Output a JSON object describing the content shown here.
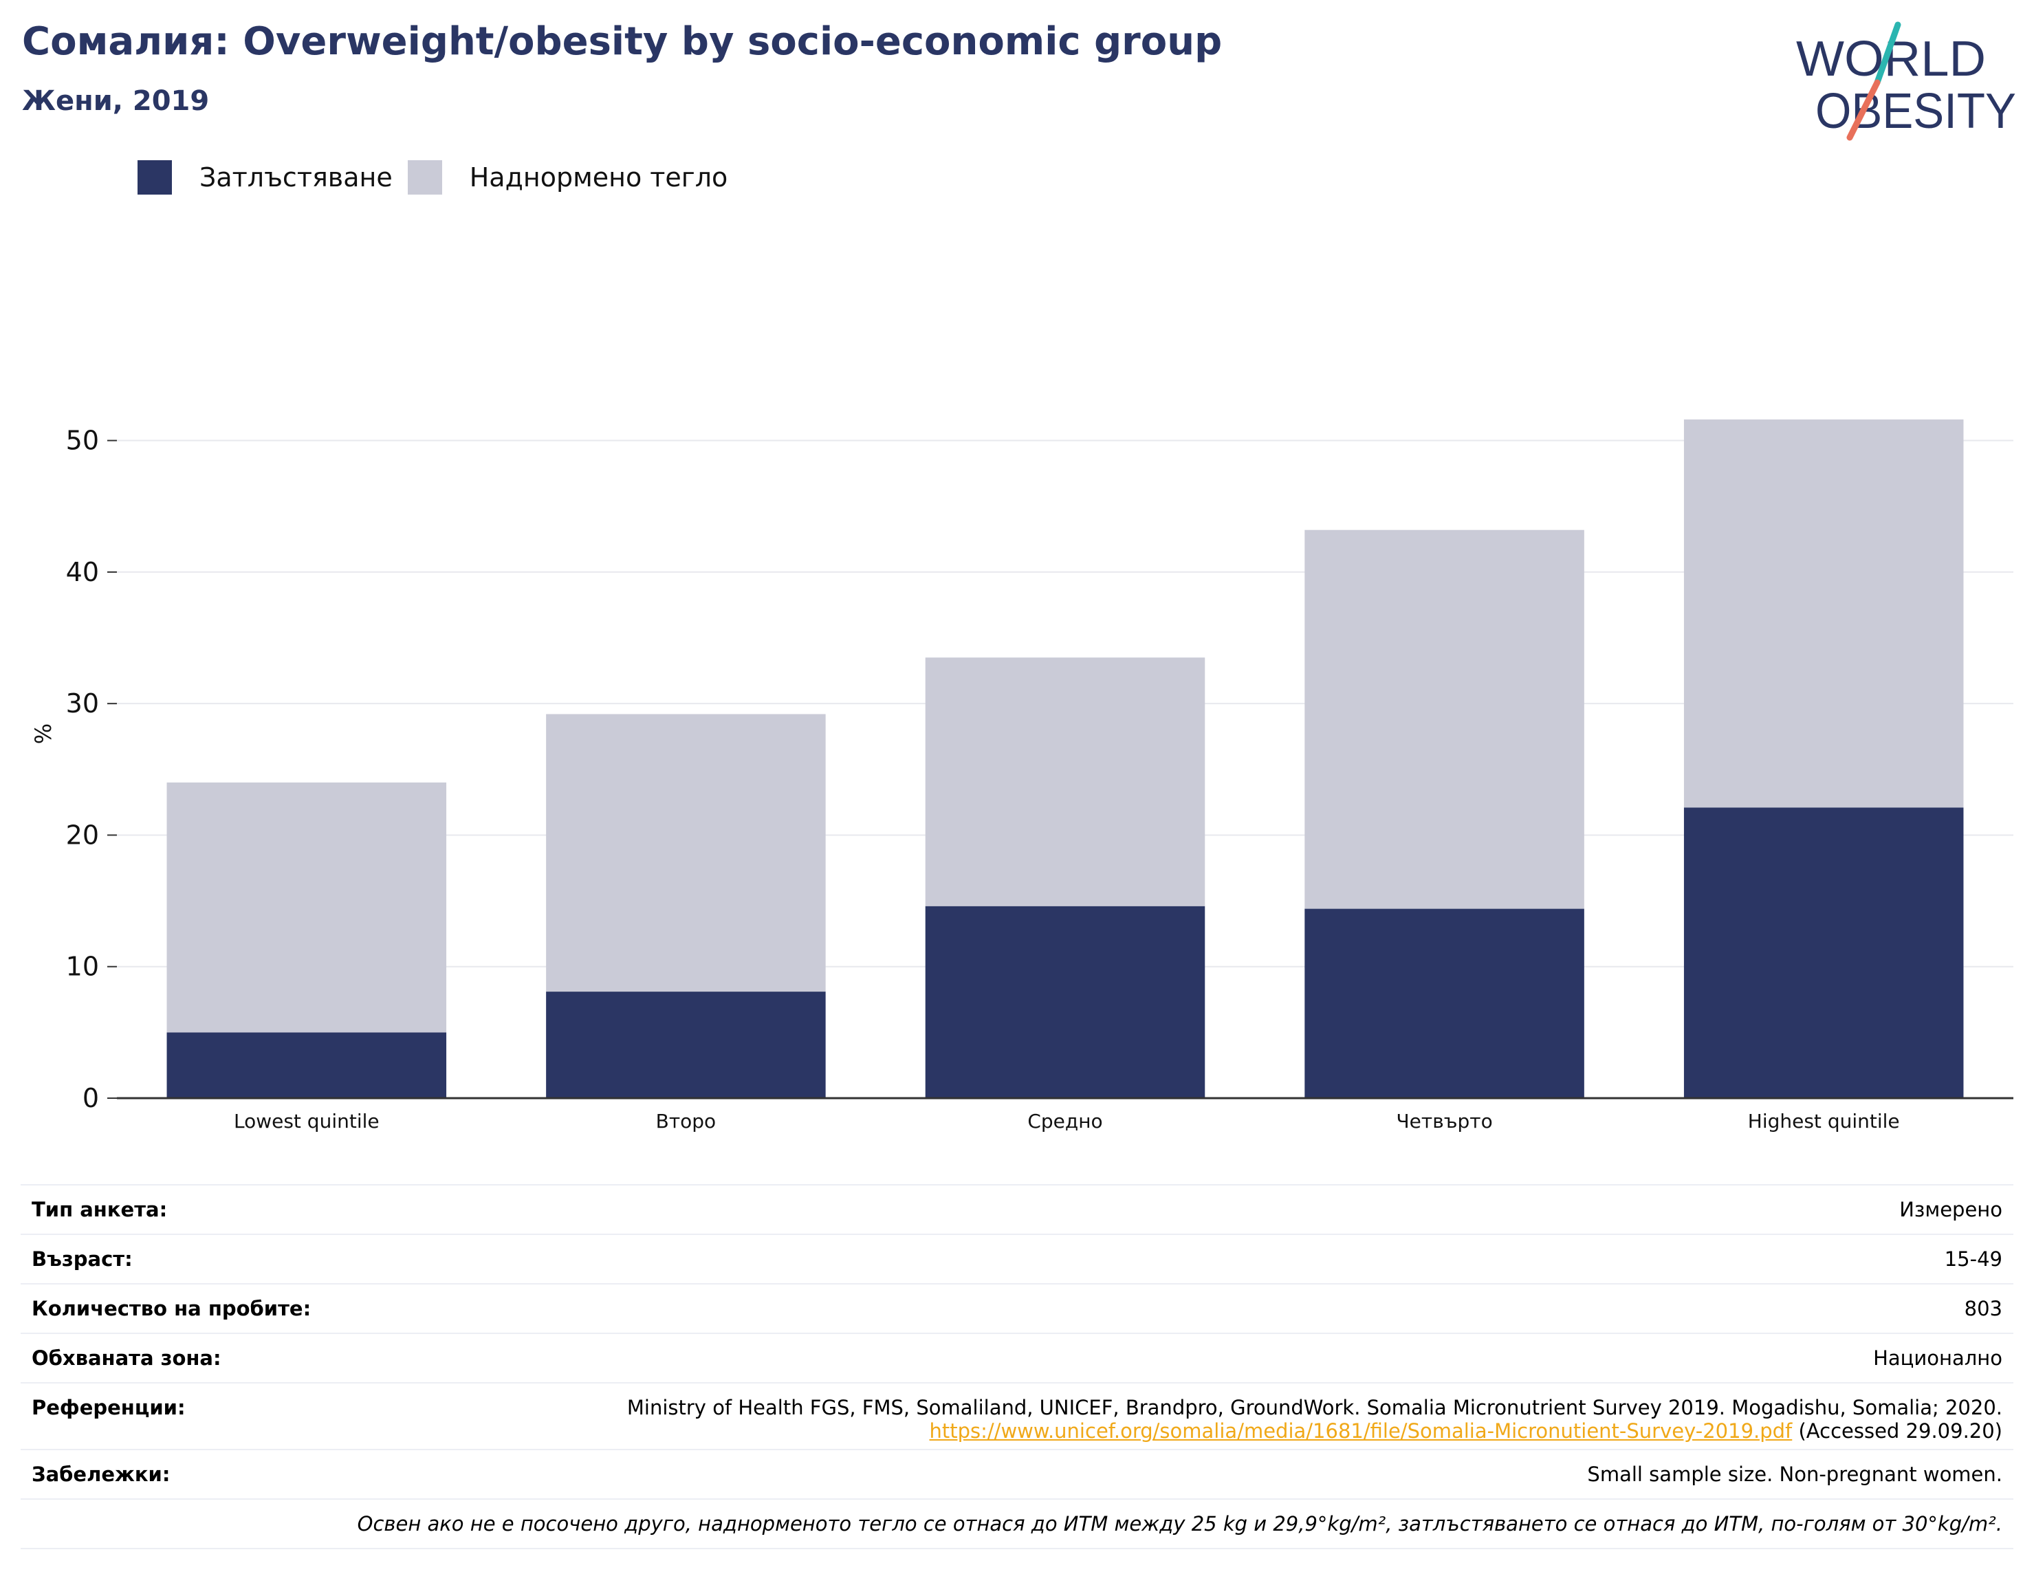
{
  "header": {
    "title": "Сомалия: Overweight/obesity by socio-economic group",
    "subtitle": "Жени, 2019"
  },
  "logo": {
    "line1": "WORLD",
    "line2": "OBESITY",
    "colors": {
      "text": "#2a3664",
      "slash_teal": "#2bb5b0",
      "slash_coral": "#e8705a"
    }
  },
  "colors": {
    "obesity": "#2b3664",
    "overweight": "#cacbd7",
    "grid": "#e8e9ee",
    "axis": "#333333"
  },
  "chart_data": {
    "type": "bar",
    "stacked": true,
    "categories": [
      "Lowest quintile",
      "Второ",
      "Средно",
      "Четвърто",
      "Highest quintile"
    ],
    "series": [
      {
        "name": "Затлъстяване",
        "values": [
          5.0,
          8.1,
          14.6,
          14.4,
          22.1
        ]
      },
      {
        "name": "Наднормено тегло",
        "values": [
          19.0,
          21.1,
          18.9,
          28.8,
          29.5
        ]
      }
    ],
    "ylabel": "%",
    "ylim": [
      0,
      55
    ],
    "yticks": [
      0,
      10,
      20,
      30,
      40,
      50
    ],
    "grid": true,
    "legend_position": "top-left"
  },
  "meta": [
    {
      "key": "Тип анкета:",
      "value": "Измерено"
    },
    {
      "key": "Възраст:",
      "value": "15-49"
    },
    {
      "key": "Количество на пробите:",
      "value": "803"
    },
    {
      "key": "Обхваната зона:",
      "value": "Национално"
    }
  ],
  "references": {
    "key": "Референции:",
    "line1": "Ministry of Health FGS, FMS, Somaliland, UNICEF, Brandpro, GroundWork. Somalia Micronutrient Survey 2019. Mogadishu, Somalia; 2020.",
    "link": "https://www.unicef.org/somalia/media/1681/file/Somalia-Micronutient-Survey-2019.pdf",
    "accessed": " (Accessed 29.09.20)"
  },
  "notes": {
    "key": "Забележки:",
    "value": "Small sample size. Non-pregnant women."
  },
  "footnote": "Освен ако не е посочено друго, наднорменото тегло се отнася до ИТМ между 25 kg и 29,9°kg/m², затлъстяването се отнася до ИТМ, по-голям от 30°kg/m²."
}
